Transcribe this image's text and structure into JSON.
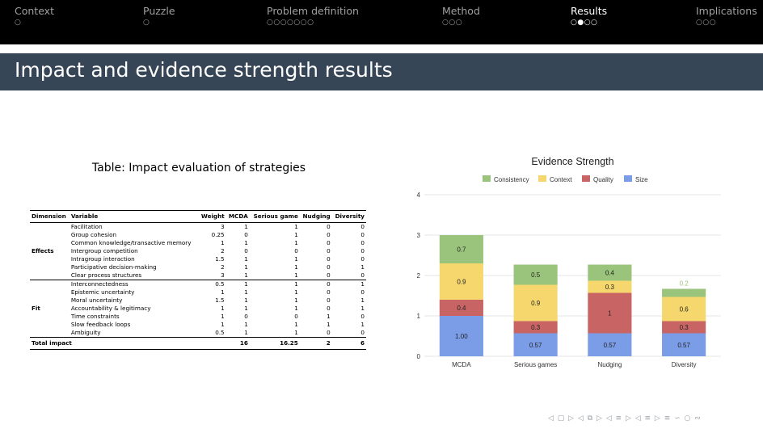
{
  "nav": {
    "sections": [
      {
        "label": "Context",
        "dots": "○",
        "active": false
      },
      {
        "label": "Puzzle",
        "dots": "○",
        "active": false
      },
      {
        "label": "Problem definition",
        "dots": "○○○○○○○",
        "active": false
      },
      {
        "label": "Method",
        "dots": "○○○",
        "active": false
      },
      {
        "label": "Results",
        "dots": "○●○○",
        "active": true
      },
      {
        "label": "Implications",
        "dots": "○○○",
        "active": false
      }
    ]
  },
  "slide": {
    "title": "Impact and evidence strength results"
  },
  "table": {
    "caption": "Table: Impact evaluation of strategies",
    "headers": [
      "Dimension",
      "Variable",
      "Weight",
      "MCDA",
      "Serious game",
      "Nudging",
      "Diversity"
    ],
    "groups": [
      {
        "dimension": "Effects",
        "rows": [
          [
            "Facilitation",
            "3",
            "1",
            "1",
            "0",
            "0"
          ],
          [
            "Group cohesion",
            "0.25",
            "0",
            "1",
            "0",
            "0"
          ],
          [
            "Common knowledge/transactive memory",
            "1",
            "1",
            "1",
            "0",
            "0"
          ],
          [
            "Intergroup competition",
            "2",
            "0",
            "0",
            "0",
            "0"
          ],
          [
            "Intragroup interaction",
            "1.5",
            "1",
            "1",
            "0",
            "0"
          ],
          [
            "Participative decision-making",
            "2",
            "1",
            "1",
            "0",
            "1"
          ],
          [
            "Clear process structures",
            "3",
            "1",
            "1",
            "0",
            "0"
          ]
        ]
      },
      {
        "dimension": "Fit",
        "rows": [
          [
            "Interconnectedness",
            "0.5",
            "1",
            "1",
            "0",
            "1"
          ],
          [
            "Epistemic uncertainty",
            "1",
            "1",
            "1",
            "0",
            "0"
          ],
          [
            "Moral uncertainty",
            "1.5",
            "1",
            "1",
            "0",
            "1"
          ],
          [
            "Accountability & legitimacy",
            "1",
            "1",
            "1",
            "0",
            "1"
          ],
          [
            "Time constraints",
            "1",
            "0",
            "0",
            "1",
            "0"
          ],
          [
            "Slow feedback loops",
            "1",
            "1",
            "1",
            "1",
            "1"
          ],
          [
            "Ambiguity",
            "0.5",
            "1",
            "1",
            "0",
            "0"
          ]
        ]
      }
    ],
    "total": {
      "label": "Total impact",
      "values": [
        "16",
        "16.25",
        "2",
        "6"
      ]
    }
  },
  "chart_data": {
    "type": "bar",
    "stacked": true,
    "title": "Evidence Strength",
    "categories": [
      "MCDA",
      "Serious games",
      "Nudging",
      "Diversity"
    ],
    "series": [
      {
        "name": "Size",
        "color": "#7b9ce6",
        "values": [
          1.0,
          0.57,
          0.57,
          0.57
        ],
        "labels": [
          "1.00",
          "0.57",
          "0.57",
          "0.57"
        ]
      },
      {
        "name": "Quality",
        "color": "#c96464",
        "values": [
          0.4,
          0.3,
          1.0,
          0.3
        ],
        "labels": [
          "0.4",
          "0.3",
          "1",
          "0.3"
        ]
      },
      {
        "name": "Context",
        "color": "#f5d76e",
        "values": [
          0.9,
          0.9,
          0.3,
          0.6
        ],
        "labels": [
          "0.9",
          "0.9",
          "0.3",
          "0.6"
        ]
      },
      {
        "name": "Consistency",
        "color": "#9ac47b",
        "values": [
          0.7,
          0.5,
          0.4,
          0.2
        ],
        "labels": [
          "0.7",
          "0.5",
          "0.4",
          "0.2"
        ]
      }
    ],
    "legend_order": [
      "Consistency",
      "Context",
      "Quality",
      "Size"
    ],
    "legend_position": "top",
    "ylim": [
      0,
      4
    ],
    "yticks": [
      0,
      1,
      2,
      3,
      4
    ],
    "grid": true
  },
  "footer": {
    "nav_icons": "◁ ▢ ▷ ◁ ⧉ ▷ ◁ ≡ ▷ ◁ ≡ ▷   ≡   ∽ ○ ∾"
  }
}
